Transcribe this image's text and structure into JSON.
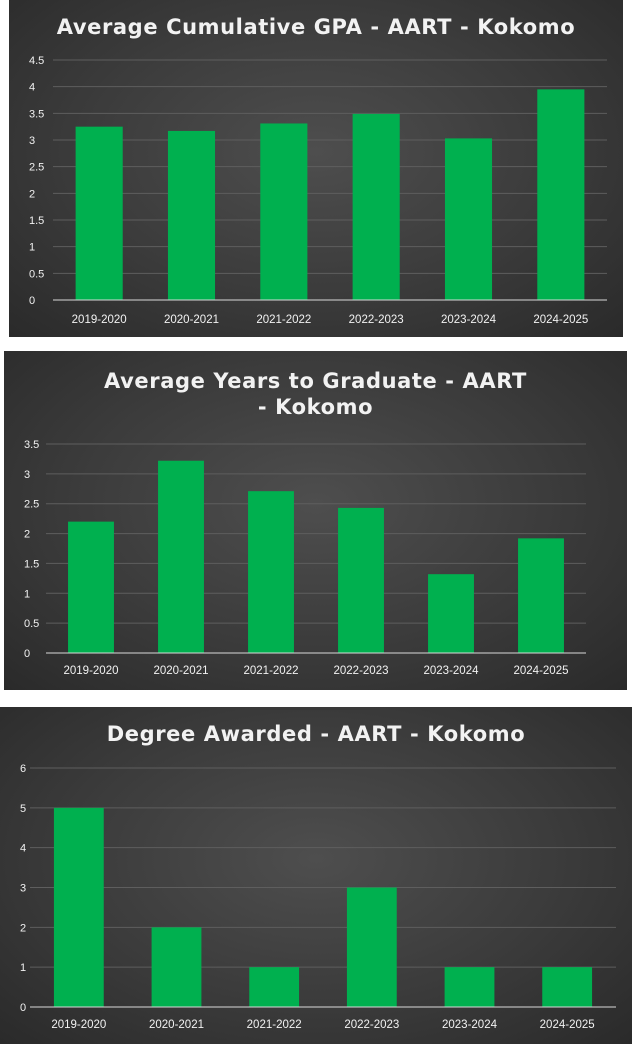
{
  "colors": {
    "bar": "#00b04f",
    "grid": "#5e5e5e",
    "axis": "#d9d9d9",
    "text": "#f2f2f2"
  },
  "chart_data": [
    {
      "type": "bar",
      "title": "Average Cumulative GPA - AART - Kokomo",
      "categories": [
        "2019-2020",
        "2020-2021",
        "2021-2022",
        "2022-2023",
        "2023-2024",
        "2024-2025"
      ],
      "values": [
        3.25,
        3.17,
        3.31,
        3.49,
        3.03,
        3.95
      ],
      "ylim": [
        0,
        4.5
      ],
      "yticks": [
        "0",
        "0.5",
        "1",
        "1.5",
        "2",
        "2.5",
        "3",
        "3.5",
        "4",
        "4.5"
      ],
      "xlabel": "",
      "ylabel": "",
      "grid": true
    },
    {
      "type": "bar",
      "title": "Average Years to Graduate - AART - Kokomo",
      "categories": [
        "2019-2020",
        "2020-2021",
        "2021-2022",
        "2022-2023",
        "2023-2024",
        "2024-2025"
      ],
      "values": [
        2.2,
        3.22,
        2.71,
        2.43,
        1.32,
        1.92
      ],
      "ylim": [
        0,
        3.5
      ],
      "yticks": [
        "0",
        "0.5",
        "1",
        "1.5",
        "2",
        "2.5",
        "3",
        "3.5"
      ],
      "xlabel": "",
      "ylabel": "",
      "grid": true
    },
    {
      "type": "bar",
      "title": "Degree Awarded - AART - Kokomo",
      "categories": [
        "2019-2020",
        "2020-2021",
        "2021-2022",
        "2022-2023",
        "2023-2024",
        "2024-2025"
      ],
      "values": [
        5,
        2,
        1,
        3,
        1,
        1
      ],
      "ylim": [
        0,
        6
      ],
      "yticks": [
        "0",
        "1",
        "2",
        "3",
        "4",
        "5",
        "6"
      ],
      "xlabel": "",
      "ylabel": "",
      "grid": true
    }
  ]
}
